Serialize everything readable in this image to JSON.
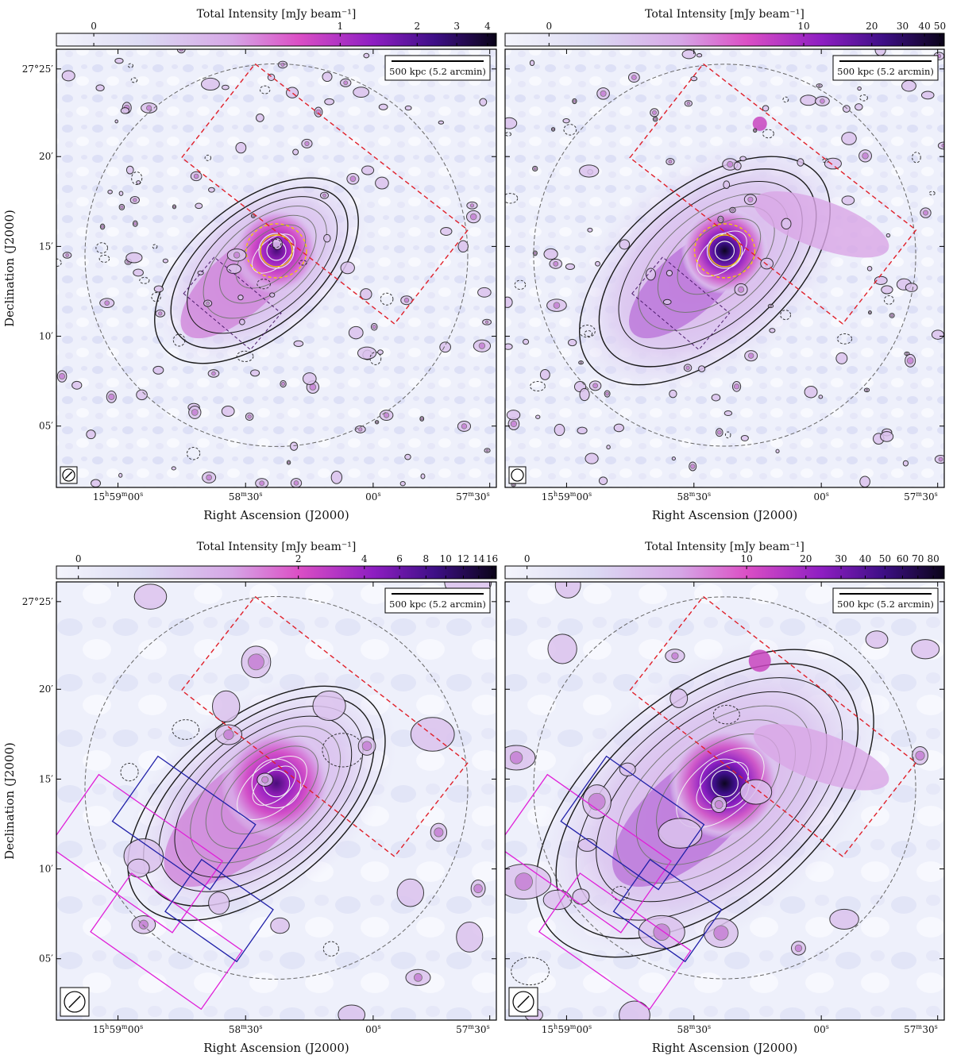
{
  "figure": {
    "panels": [
      {
        "id": "a",
        "colorbar_title": "Total Intensity [mJy beam⁻¹]",
        "colorbar_ticks": [
          "0",
          "1",
          "2",
          "3",
          "4"
        ],
        "colorbar_tick_frac": [
          0.085,
          0.645,
          0.82,
          0.91,
          0.98
        ],
        "scale_label": "500 kpc (5.2 arcmin)",
        "ra_label": "Right Ascension (J2000)",
        "dec_label": "Declination (J2000)",
        "ra_ticks": [
          "15h59m00s",
          "58m30s",
          "00s",
          "57m30s"
        ],
        "dec_ticks": [
          "27°25′",
          "20′",
          "15′",
          "10′",
          "05′"
        ],
        "beam": "small-hatched",
        "boxes": [
          "red-dashed"
        ],
        "yellow_contours": true
      },
      {
        "id": "b",
        "colorbar_title": "Total Intensity [mJy beam⁻¹]",
        "colorbar_ticks": [
          "0",
          "10",
          "20",
          "30",
          "40",
          "50"
        ],
        "colorbar_tick_frac": [
          0.1,
          0.68,
          0.835,
          0.905,
          0.955,
          0.99
        ],
        "scale_label": "500 kpc (5.2 arcmin)",
        "ra_label": "Right Ascension (J2000)",
        "dec_label": "",
        "ra_ticks": [
          "15h59m00s",
          "58m30s",
          "00s",
          "57m30s"
        ],
        "dec_ticks": [],
        "beam": "small-open",
        "boxes": [
          "red-dashed"
        ],
        "yellow_contours": true
      },
      {
        "id": "c",
        "colorbar_title": "Total Intensity [mJy beam⁻¹]",
        "colorbar_ticks": [
          "0",
          "2",
          "4",
          "6",
          "8",
          "10",
          "12",
          "14",
          "16"
        ],
        "colorbar_tick_frac": [
          0.05,
          0.55,
          0.7,
          0.78,
          0.84,
          0.885,
          0.925,
          0.96,
          0.99
        ],
        "scale_label": "500 kpc (5.2 arcmin)",
        "ra_label": "Right Ascension (J2000)",
        "dec_label": "Declination (J2000)",
        "ra_ticks": [
          "15h59m00s",
          "58m30s",
          "00s",
          "57m30s"
        ],
        "dec_ticks": [
          "27°25′",
          "20′",
          "15′",
          "10′",
          "05′"
        ],
        "beam": "large-hatched",
        "boxes": [
          "red-dashed",
          "magenta",
          "blue"
        ],
        "yellow_contours": false
      },
      {
        "id": "d",
        "colorbar_title": "Total Intensity [mJy beam⁻¹]",
        "colorbar_ticks": [
          "0",
          "10",
          "20",
          "30",
          "40",
          "50",
          "60",
          "70",
          "80"
        ],
        "colorbar_tick_frac": [
          0.05,
          0.55,
          0.685,
          0.765,
          0.82,
          0.865,
          0.905,
          0.94,
          0.975
        ],
        "scale_label": "500 kpc (5.2 arcmin)",
        "ra_label": "Right Ascension (J2000)",
        "dec_label": "",
        "ra_ticks": [
          "15h59m00s",
          "58m30s",
          "00s",
          "57m30s"
        ],
        "dec_ticks": [],
        "beam": "large-hatched",
        "boxes": [
          "red-dashed",
          "magenta",
          "blue"
        ],
        "yellow_contours": false
      }
    ],
    "colors": {
      "background": "#eef0fb",
      "colormap": [
        "#f4f5fc",
        "#d9d6f2",
        "#c8a8e6",
        "#d45cc4",
        "#9a1fc0",
        "#4b0f8a",
        "#120628"
      ],
      "contour_dark": "#1a1a1a",
      "contour_grey": "#777777",
      "contour_light": "#f2f2f2",
      "yellow": "#f5d000",
      "red_box": "#e0202a",
      "magenta_box": "#e020d8",
      "blue_box": "#2020a8",
      "circle": "#666666"
    }
  }
}
